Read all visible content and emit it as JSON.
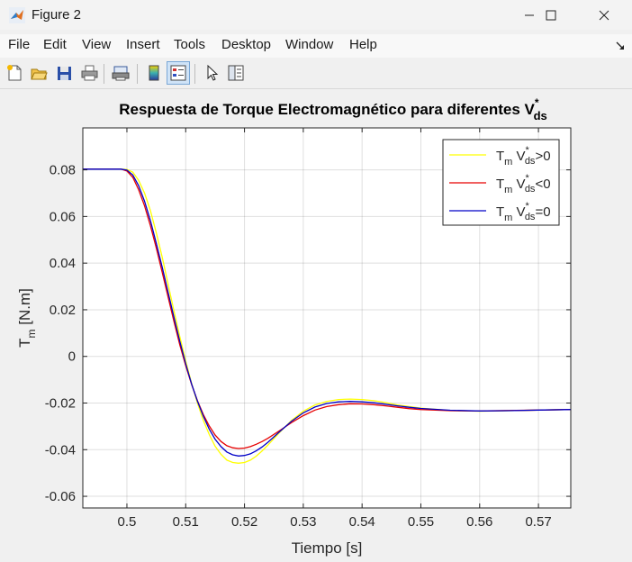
{
  "window": {
    "title": "Figure 2"
  },
  "menu": [
    "File",
    "Edit",
    "View",
    "Insert",
    "Tools",
    "Desktop",
    "Window",
    "Help"
  ],
  "toolbar": [
    {
      "name": "new-figure-icon"
    },
    {
      "name": "open-file-icon"
    },
    {
      "name": "save-icon"
    },
    {
      "name": "print-icon"
    },
    {
      "name": "print-preview-icon"
    },
    {
      "name": "insert-colorbar-icon"
    },
    {
      "name": "insert-legend-icon"
    },
    {
      "name": "edit-plot-pointer-icon"
    },
    {
      "name": "property-inspector-icon"
    }
  ],
  "chart_data": {
    "type": "line",
    "title": "Respuesta de Torque Electromagnético para diferentes V",
    "title_sub": "ds",
    "title_sup": "*",
    "xlabel": "Tiempo [s]",
    "ylabel_main": "T",
    "ylabel_sub": "m",
    "ylabel_rest": " [N.m]",
    "xlim": [
      0.4925,
      0.5755
    ],
    "ylim": [
      -0.065,
      0.098
    ],
    "xticks": [
      0.5,
      0.51,
      0.52,
      0.53,
      0.54,
      0.55,
      0.56,
      0.57
    ],
    "xtick_labels": [
      "0.5",
      "0.51",
      "0.52",
      "0.53",
      "0.54",
      "0.55",
      "0.56",
      "0.57"
    ],
    "yticks": [
      -0.06,
      -0.04,
      -0.02,
      0,
      0.02,
      0.04,
      0.06,
      0.08
    ],
    "ytick_labels": [
      "-0.06",
      "-0.04",
      "-0.02",
      "0",
      "0.02",
      "0.04",
      "0.06",
      "0.08"
    ],
    "grid": true,
    "legend_position": "top-right",
    "series": [
      {
        "legend": {
          "a": "T",
          "b": "m",
          "c": " V",
          "d": "*",
          "e": "ds",
          "f": ">0"
        },
        "color": "#ffff00",
        "x": [
          0.4925,
          0.499,
          0.5,
          0.501,
          0.502,
          0.503,
          0.504,
          0.505,
          0.506,
          0.507,
          0.508,
          0.509,
          0.51,
          0.511,
          0.512,
          0.513,
          0.514,
          0.515,
          0.516,
          0.517,
          0.518,
          0.519,
          0.52,
          0.521,
          0.522,
          0.523,
          0.524,
          0.526,
          0.528,
          0.53,
          0.532,
          0.534,
          0.536,
          0.538,
          0.54,
          0.542,
          0.544,
          0.546,
          0.548,
          0.55,
          0.555,
          0.56,
          0.565,
          0.57,
          0.5755
        ],
        "y": [
          0.0803,
          0.0803,
          0.0802,
          0.079,
          0.0755,
          0.07,
          0.0625,
          0.053,
          0.0425,
          0.031,
          0.0195,
          0.0085,
          -0.002,
          -0.0115,
          -0.02,
          -0.0275,
          -0.0335,
          -0.0385,
          -0.042,
          -0.0445,
          -0.0455,
          -0.0458,
          -0.0455,
          -0.0445,
          -0.0428,
          -0.0405,
          -0.038,
          -0.0325,
          -0.0275,
          -0.0235,
          -0.0208,
          -0.0193,
          -0.0185,
          -0.0183,
          -0.0185,
          -0.019,
          -0.0198,
          -0.0208,
          -0.0215,
          -0.0222,
          -0.0232,
          -0.0235,
          -0.0233,
          -0.023,
          -0.0228
        ]
      },
      {
        "legend": {
          "a": "T",
          "b": "m",
          "c": " V",
          "d": "*",
          "e": "ds",
          "f": "<0"
        },
        "color": "#e60000",
        "x": [
          0.4925,
          0.499,
          0.5,
          0.501,
          0.502,
          0.503,
          0.504,
          0.505,
          0.506,
          0.507,
          0.508,
          0.509,
          0.51,
          0.511,
          0.512,
          0.513,
          0.514,
          0.515,
          0.516,
          0.517,
          0.518,
          0.519,
          0.52,
          0.521,
          0.522,
          0.523,
          0.524,
          0.526,
          0.528,
          0.53,
          0.532,
          0.534,
          0.536,
          0.538,
          0.54,
          0.542,
          0.544,
          0.546,
          0.548,
          0.55,
          0.555,
          0.56,
          0.565,
          0.57,
          0.5755
        ],
        "y": [
          0.0803,
          0.0803,
          0.0795,
          0.0768,
          0.0715,
          0.0645,
          0.056,
          0.0465,
          0.036,
          0.0255,
          0.015,
          0.005,
          -0.004,
          -0.012,
          -0.019,
          -0.025,
          -0.0298,
          -0.0337,
          -0.0365,
          -0.0383,
          -0.0392,
          -0.0395,
          -0.0393,
          -0.0387,
          -0.0377,
          -0.0365,
          -0.0351,
          -0.0318,
          -0.0284,
          -0.0254,
          -0.023,
          -0.0215,
          -0.0207,
          -0.0203,
          -0.0204,
          -0.0207,
          -0.0212,
          -0.0218,
          -0.0224,
          -0.0228,
          -0.0233,
          -0.0234,
          -0.0232,
          -0.023,
          -0.0228
        ]
      },
      {
        "legend": {
          "a": "T",
          "b": "m",
          "c": " V",
          "d": "*",
          "e": "ds",
          "f": "=0"
        },
        "color": "#0000c8",
        "x": [
          0.4925,
          0.499,
          0.5,
          0.501,
          0.502,
          0.503,
          0.504,
          0.505,
          0.506,
          0.507,
          0.508,
          0.509,
          0.51,
          0.511,
          0.512,
          0.513,
          0.514,
          0.515,
          0.516,
          0.517,
          0.518,
          0.519,
          0.52,
          0.521,
          0.522,
          0.523,
          0.524,
          0.526,
          0.528,
          0.53,
          0.532,
          0.534,
          0.536,
          0.538,
          0.54,
          0.542,
          0.544,
          0.546,
          0.548,
          0.55,
          0.555,
          0.56,
          0.565,
          0.57,
          0.5755
        ],
        "y": [
          0.0803,
          0.0803,
          0.0799,
          0.0778,
          0.0732,
          0.0665,
          0.0582,
          0.0485,
          0.0382,
          0.0275,
          0.0168,
          0.0065,
          -0.0032,
          -0.0118,
          -0.0192,
          -0.0257,
          -0.0312,
          -0.0355,
          -0.0387,
          -0.041,
          -0.0422,
          -0.0427,
          -0.0425,
          -0.0418,
          -0.0405,
          -0.0388,
          -0.0368,
          -0.0322,
          -0.0278,
          -0.0242,
          -0.0217,
          -0.0202,
          -0.0195,
          -0.0193,
          -0.0195,
          -0.0199,
          -0.0205,
          -0.0212,
          -0.0218,
          -0.0223,
          -0.0231,
          -0.0234,
          -0.0233,
          -0.023,
          -0.0228
        ]
      }
    ]
  }
}
